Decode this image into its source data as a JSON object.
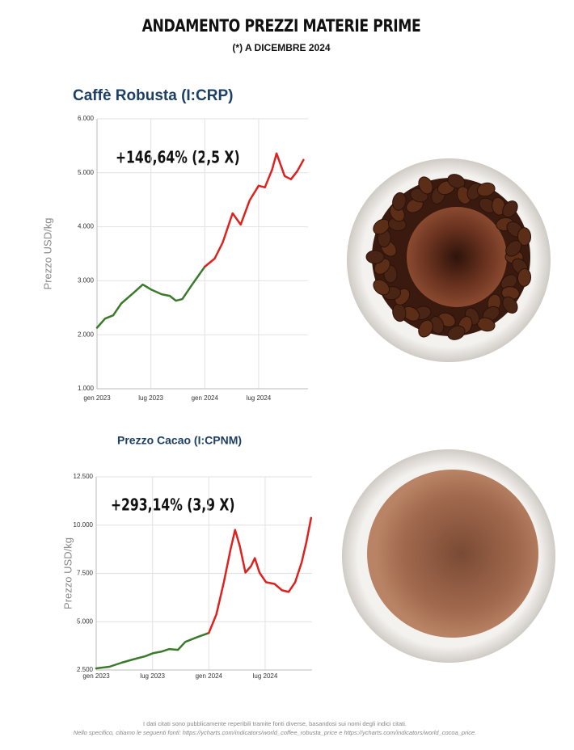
{
  "header": {
    "title": "ANDAMENTO PREZZI MATERIE PRIME",
    "subtitle": "(*) A DICEMBRE 2024"
  },
  "chart_data": [
    {
      "type": "line",
      "title": "Caffè Robusta (I:CRP)",
      "annotation": "+146,64%  (2,5 X)",
      "y_label": "Prezzo USD/kg",
      "ylim": [
        1000,
        6000
      ],
      "yticks": [
        {
          "value": 1000,
          "label": "1.000"
        },
        {
          "value": 2000,
          "label": "2.000"
        },
        {
          "value": 3000,
          "label": "3.000"
        },
        {
          "value": 4000,
          "label": "4.000"
        },
        {
          "value": 5000,
          "label": "5.000"
        },
        {
          "value": 6000,
          "label": "6.000"
        }
      ],
      "xlim": [
        0,
        23.5
      ],
      "xticks": [
        {
          "value": 0,
          "label": "gen 2023"
        },
        {
          "value": 6,
          "label": "lug 2023"
        },
        {
          "value": 12,
          "label": "gen 2024"
        },
        {
          "value": 18,
          "label": "lug 2024"
        }
      ],
      "grid": true,
      "series": [
        {
          "color": "#3a7a2a",
          "x": [
            0,
            0.9,
            1.8,
            2.7,
            4.1,
            5.1,
            6.0,
            7.2,
            8.1,
            8.8,
            9.5,
            10.6,
            12
          ],
          "values": [
            2130,
            2300,
            2360,
            2580,
            2780,
            2930,
            2840,
            2750,
            2720,
            2630,
            2660,
            2930,
            3260
          ]
        },
        {
          "color": "#e0201c",
          "x": [
            12,
            13.1,
            14,
            15.1,
            16,
            17,
            18,
            18.7,
            19.5,
            20,
            20.9,
            21.6,
            22.3,
            23
          ],
          "values": [
            3260,
            3410,
            3710,
            4250,
            4040,
            4490,
            4760,
            4730,
            5060,
            5360,
            4940,
            4880,
            5030,
            5240
          ]
        }
      ]
    },
    {
      "type": "line",
      "title": "Prezzo Cacao  (I:CPNM)",
      "annotation": "+293,14% (3,9 X)",
      "y_label": "Prezzo USD/kg",
      "ylim": [
        2500,
        12500
      ],
      "yticks": [
        {
          "value": 2500,
          "label": "2.500"
        },
        {
          "value": 5000,
          "label": "5.000"
        },
        {
          "value": 7500,
          "label": "7.500"
        },
        {
          "value": 10000,
          "label": "10.000"
        },
        {
          "value": 12500,
          "label": "12.500"
        }
      ],
      "xlim": [
        0,
        23
      ],
      "xticks": [
        {
          "value": 0,
          "label": "gen 2023"
        },
        {
          "value": 6,
          "label": "lug 2023"
        },
        {
          "value": 12,
          "label": "gen 2024"
        },
        {
          "value": 18,
          "label": "lug 2024"
        }
      ],
      "grid": true,
      "series": [
        {
          "color": "#3a7a2a",
          "x": [
            0,
            1.4,
            2.7,
            3.9,
            5.2,
            6.1,
            7.0,
            7.8,
            8.7,
            9.5,
            10.8,
            12
          ],
          "values": [
            2583,
            2667,
            2875,
            3042,
            3208,
            3375,
            3458,
            3583,
            3542,
            3958,
            4208,
            4417
          ]
        },
        {
          "color": "#e0201c",
          "x": [
            12,
            12.8,
            13.6,
            14.3,
            14.8,
            15.3,
            15.9,
            16.5,
            16.9,
            17.4,
            18.1,
            19.0,
            19.8,
            20.5,
            21.2,
            21.9,
            22.4,
            22.9
          ],
          "values": [
            4417,
            5375,
            7042,
            8708,
            9750,
            8917,
            7542,
            7875,
            8292,
            7542,
            7042,
            6958,
            6625,
            6542,
            7042,
            8083,
            9125,
            10375
          ]
        }
      ]
    }
  ],
  "footer": {
    "line1": "I dati citati sono pubblicamente reperibili tramite fonti diverse, basandosi sui nomi degli indici citati.",
    "line2": "Nello specifico, citiamo le seguenti fonti: https://ycharts.com/indicators/world_coffee_robusta_price e https://ycharts.com/indicators/world_cocoa_price."
  }
}
